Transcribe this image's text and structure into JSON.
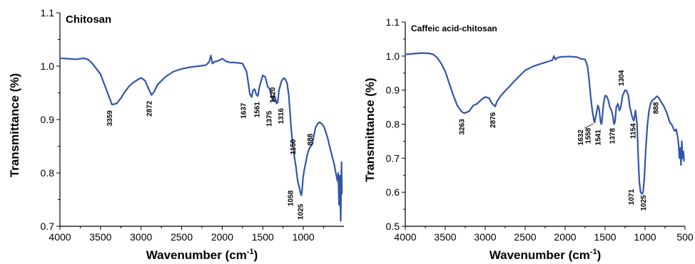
{
  "colors": {
    "spectrum": "#3355aa"
  },
  "chart_data": [
    {
      "type": "line",
      "title": "Chitosan",
      "xlabel": "Wavenumber (cm-1)",
      "xlabel_main": "Wavenumber (cm",
      "xlabel_sup": "-1",
      "xlabel_close": ")",
      "ylabel": "Transmittance (%)",
      "xlim": [
        4000,
        500
      ],
      "ylim": [
        0.7,
        1.1
      ],
      "xticks": [
        4000,
        3500,
        3000,
        2500,
        2000,
        1500,
        1000
      ],
      "xtick_labels": [
        "4000",
        "3500",
        "3000",
        "2500",
        "2000",
        "1500",
        "1000"
      ],
      "yticks": [
        0.7,
        0.8,
        0.9,
        1.0,
        1.1
      ],
      "ytick_labels": [
        "0.7",
        "0.8",
        "0.9",
        "1.0",
        "1.1"
      ],
      "grid": false,
      "series": [
        {
          "x": [
            3990,
            3900,
            3800,
            3700,
            3650,
            3600,
            3500,
            3450,
            3400,
            3359,
            3300,
            3250,
            3200,
            3150,
            3100,
            3050,
            3000,
            2950,
            2920,
            2872,
            2840,
            2800,
            2700,
            2600,
            2500,
            2400,
            2300,
            2200,
            2160,
            2140,
            2120,
            2100,
            2050,
            2000,
            1950,
            1900,
            1850,
            1800,
            1750,
            1700,
            1680,
            1660,
            1637,
            1620,
            1600,
            1580,
            1561,
            1540,
            1500,
            1470,
            1440,
            1420,
            1405,
            1390,
            1375,
            1360,
            1345,
            1330,
            1316,
            1300,
            1270,
            1240,
            1220,
            1200,
            1180,
            1165,
            1150,
            1130,
            1110,
            1090,
            1070,
            1058,
            1045,
            1035,
            1025,
            1015,
            1005,
            990,
            970,
            950,
            930,
            910,
            888,
            870,
            850,
            820,
            800,
            780,
            760,
            740,
            720,
            700,
            680,
            660,
            640,
            620,
            600,
            580,
            570,
            560,
            550,
            540,
            530,
            525
          ],
          "y": [
            1.015,
            1.014,
            1.013,
            1.015,
            1.012,
            1.005,
            0.985,
            0.965,
            0.945,
            0.928,
            0.93,
            0.94,
            0.952,
            0.962,
            0.969,
            0.974,
            0.978,
            0.973,
            0.962,
            0.946,
            0.952,
            0.965,
            0.98,
            0.99,
            0.995,
            0.998,
            1.0,
            1.002,
            1.008,
            1.02,
            1.005,
            1.008,
            1.01,
            1.014,
            1.009,
            1.007,
            1.007,
            1.006,
            1.005,
            0.99,
            0.97,
            0.948,
            0.942,
            0.955,
            0.957,
            0.947,
            0.944,
            0.962,
            0.983,
            0.98,
            0.962,
            0.958,
            0.952,
            0.942,
            0.935,
            0.945,
            0.94,
            0.93,
            0.932,
            0.955,
            0.972,
            0.978,
            0.975,
            0.968,
            0.945,
            0.915,
            0.882,
            0.852,
            0.83,
            0.81,
            0.785,
            0.778,
            0.77,
            0.762,
            0.758,
            0.768,
            0.79,
            0.805,
            0.82,
            0.835,
            0.845,
            0.85,
            0.855,
            0.87,
            0.885,
            0.893,
            0.895,
            0.893,
            0.89,
            0.884,
            0.875,
            0.865,
            0.852,
            0.84,
            0.828,
            0.816,
            0.8,
            0.785,
            0.8,
            0.74,
            0.795,
            0.71,
            0.82,
            0.76
          ]
        }
      ],
      "annotations": [
        {
          "text": "3359",
          "x": 3359,
          "y": 0.928
        },
        {
          "text": "2872",
          "x": 2872,
          "y": 0.946
        },
        {
          "text": "1637",
          "x": 1637,
          "y": 0.942
        },
        {
          "text": "1561",
          "x": 1561,
          "y": 0.944
        },
        {
          "text": "1420",
          "x": 1420,
          "y": 0.958
        },
        {
          "text": "1375",
          "x": 1375,
          "y": 0.935
        },
        {
          "text": "1316",
          "x": 1316,
          "y": 0.932
        },
        {
          "text": "1150",
          "x": 1150,
          "y": 0.882
        },
        {
          "text": "1058",
          "x": 1058,
          "y": 0.778
        },
        {
          "text": "1025",
          "x": 1025,
          "y": 0.758
        },
        {
          "text": "888",
          "x": 888,
          "y": 0.855
        }
      ]
    },
    {
      "type": "line",
      "title": "Caffeic acid-chitosan",
      "xlabel": "Wavenumber (cm-1)",
      "xlabel_main": "Wavenumber (cm",
      "xlabel_sup": "-1",
      "xlabel_close": ")",
      "ylabel": "Transmittance (%)",
      "xlim": [
        4000,
        500
      ],
      "ylim": [
        0.5,
        1.1
      ],
      "xticks": [
        4000,
        3500,
        3000,
        2500,
        2000,
        1500,
        1000,
        500
      ],
      "xtick_labels": [
        "4000",
        "3500",
        "3000",
        "2500",
        "2000",
        "1500",
        "1000",
        "500"
      ],
      "yticks": [
        0.5,
        0.6,
        0.7,
        0.8,
        0.9,
        1.0,
        1.1
      ],
      "ytick_labels": [
        "0.5",
        "0.6",
        "0.7",
        "0.8",
        "0.9",
        "1.0",
        "1.1"
      ],
      "grid": false,
      "series": [
        {
          "x": [
            3990,
            3900,
            3800,
            3700,
            3650,
            3600,
            3550,
            3500,
            3450,
            3400,
            3350,
            3300,
            3263,
            3200,
            3150,
            3100,
            3050,
            3000,
            2950,
            2920,
            2876,
            2850,
            2800,
            2700,
            2600,
            2500,
            2400,
            2300,
            2200,
            2160,
            2140,
            2120,
            2100,
            2050,
            2000,
            1950,
            1900,
            1850,
            1800,
            1750,
            1720,
            1700,
            1680,
            1660,
            1640,
            1632,
            1610,
            1590,
            1575,
            1558,
            1548,
            1541,
            1520,
            1500,
            1480,
            1460,
            1440,
            1420,
            1400,
            1390,
            1378,
            1360,
            1340,
            1320,
            1304,
            1280,
            1250,
            1230,
            1210,
            1190,
            1170,
            1154,
            1140,
            1120,
            1100,
            1085,
            1071,
            1055,
            1040,
            1025,
            1010,
            990,
            970,
            950,
            930,
            910,
            888,
            870,
            850,
            830,
            810,
            790,
            770,
            750,
            730,
            710,
            690,
            670,
            650,
            630,
            610,
            590,
            580,
            570,
            560,
            550,
            540,
            530,
            520,
            512
          ],
          "y": [
            1.005,
            1.007,
            1.009,
            1.008,
            1.005,
            0.995,
            0.978,
            0.955,
            0.92,
            0.885,
            0.855,
            0.838,
            0.832,
            0.838,
            0.855,
            0.86,
            0.872,
            0.88,
            0.876,
            0.862,
            0.852,
            0.868,
            0.885,
            0.91,
            0.935,
            0.958,
            0.97,
            0.978,
            0.985,
            0.988,
            1.0,
            0.99,
            0.995,
            0.998,
            0.998,
            0.999,
            0.998,
            0.997,
            0.992,
            0.99,
            0.97,
            0.93,
            0.88,
            0.84,
            0.812,
            0.805,
            0.83,
            0.855,
            0.845,
            0.81,
            0.8,
            0.805,
            0.86,
            0.884,
            0.882,
            0.87,
            0.85,
            0.84,
            0.82,
            0.8,
            0.805,
            0.85,
            0.86,
            0.84,
            0.85,
            0.885,
            0.9,
            0.898,
            0.885,
            0.85,
            0.83,
            0.815,
            0.81,
            0.84,
            0.8,
            0.7,
            0.63,
            0.6,
            0.595,
            0.6,
            0.64,
            0.73,
            0.8,
            0.84,
            0.86,
            0.87,
            0.873,
            0.878,
            0.882,
            0.878,
            0.87,
            0.862,
            0.855,
            0.845,
            0.835,
            0.82,
            0.805,
            0.8,
            0.79,
            0.78,
            0.785,
            0.76,
            0.74,
            0.7,
            0.73,
            0.68,
            0.75,
            0.7,
            0.72,
            0.69
          ]
        }
      ],
      "annotations": [
        {
          "text": "3263",
          "x": 3263,
          "y": 0.832
        },
        {
          "text": "2876",
          "x": 2876,
          "y": 0.852
        },
        {
          "text": "1632",
          "x": 1632,
          "y": 0.805
        },
        {
          "text": "1558",
          "x": 1558,
          "y": 0.81
        },
        {
          "text": "1541",
          "x": 1541,
          "y": 0.805
        },
        {
          "text": "1378",
          "x": 1378,
          "y": 0.805
        },
        {
          "text": "1304",
          "x": 1304,
          "y": 0.85
        },
        {
          "text": "1154",
          "x": 1154,
          "y": 0.815
        },
        {
          "text": "888",
          "x": 888,
          "y": 0.873
        },
        {
          "text": "1071",
          "x": 1071,
          "y": 0.63
        },
        {
          "text": "1025",
          "x": 1025,
          "y": 0.6
        }
      ]
    }
  ]
}
